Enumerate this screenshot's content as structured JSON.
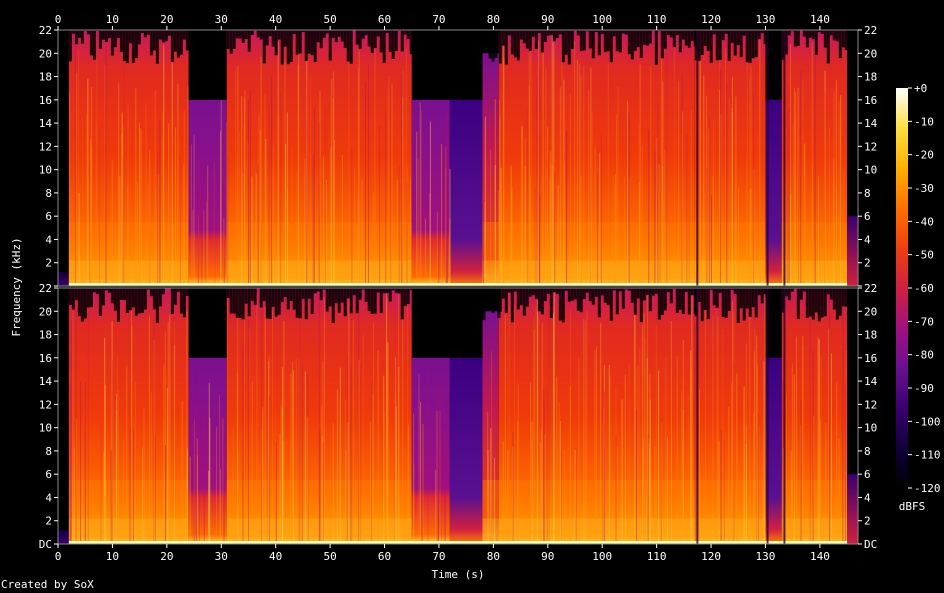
{
  "chart_data": {
    "type": "heatmap",
    "title": "",
    "xlabel": "Time (s)",
    "ylabel": "Frequency (kHz)",
    "xlim": [
      0,
      147
    ],
    "ylim_khz": [
      0,
      22
    ],
    "x_ticks": [
      "0",
      "10",
      "20",
      "30",
      "40",
      "50",
      "60",
      "70",
      "80",
      "90",
      "100",
      "110",
      "120",
      "130",
      "140"
    ],
    "y_ticks": [
      "DC",
      "2",
      "4",
      "6",
      "8",
      "10",
      "12",
      "14",
      "16",
      "18",
      "20",
      "22"
    ],
    "channels": 2,
    "colorbar": {
      "label": "dBFS",
      "range": [
        -120,
        0
      ],
      "ticks": [
        "+0",
        "-10",
        "-20",
        "-30",
        "-40",
        "-50",
        "-60",
        "-70",
        "-80",
        "-90",
        "-100",
        "-110",
        "-120"
      ],
      "colors": [
        "#000000",
        "#10003a",
        "#3a0070",
        "#6a1090",
        "#a01080",
        "#d02040",
        "#f04010",
        "#ff7000",
        "#ffb000",
        "#ffe040",
        "#ffffff"
      ]
    },
    "segments": [
      {
        "start": 0,
        "end": 2,
        "cutoff_khz": 0,
        "level": "silence"
      },
      {
        "start": 2,
        "end": 24,
        "cutoff_khz": 22,
        "level": "loud"
      },
      {
        "start": 24,
        "end": 31,
        "cutoff_khz": 16,
        "level": "quiet"
      },
      {
        "start": 31,
        "end": 65,
        "cutoff_khz": 22,
        "level": "loud"
      },
      {
        "start": 65,
        "end": 72,
        "cutoff_khz": 16,
        "level": "quiet"
      },
      {
        "start": 72,
        "end": 78,
        "cutoff_khz": 16,
        "level": "very-quiet"
      },
      {
        "start": 78,
        "end": 81,
        "cutoff_khz": 20,
        "level": "medium"
      },
      {
        "start": 81,
        "end": 117,
        "cutoff_khz": 22,
        "level": "loud"
      },
      {
        "start": 117,
        "end": 130,
        "cutoff_khz": 22,
        "level": "loud"
      },
      {
        "start": 130,
        "end": 133,
        "cutoff_khz": 16,
        "level": "very-quiet"
      },
      {
        "start": 133,
        "end": 145,
        "cutoff_khz": 22,
        "level": "loud"
      },
      {
        "start": 145,
        "end": 147,
        "cutoff_khz": 6,
        "level": "fade"
      }
    ]
  },
  "footer": {
    "credit": "Created by SoX"
  }
}
